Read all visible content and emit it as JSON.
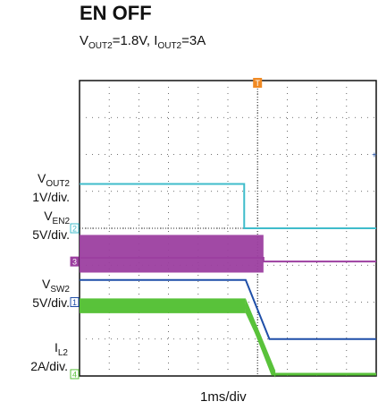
{
  "title": "EN OFF",
  "subtitle": {
    "v_main": "V",
    "v_sub": "OUT2",
    "v_val": "=1.8V, ",
    "i_main": "I",
    "i_sub": "OUT2",
    "i_val": "=3A"
  },
  "timebase": "1ms/div",
  "trigger_marker": "T",
  "channels": [
    {
      "id": "1",
      "name_main": "V",
      "name_sub": "OUT2",
      "scale": "1V/div.",
      "color": "#1f4fa8"
    },
    {
      "id": "2",
      "name_main": "V",
      "name_sub": "EN2",
      "scale": "5V/div.",
      "color": "#3fbccb"
    },
    {
      "id": "3",
      "name_main": "V",
      "name_sub": "SW2",
      "scale": "5V/div.",
      "color": "#9c3fa0"
    },
    {
      "id": "4",
      "name_main": "I",
      "name_sub": "L2",
      "scale": "2A/div.",
      "color": "#59c23a"
    }
  ],
  "chart_data": {
    "type": "line",
    "title": "EN OFF",
    "xlabel": "1ms/div",
    "x_divisions": 10,
    "y_divisions": 8,
    "grid": true,
    "trigger_time_div": 6.0,
    "series": [
      {
        "name": "VOUT2",
        "points": [
          [
            0,
            2.6
          ],
          [
            5.6,
            2.6
          ],
          [
            6.4,
            1.0
          ],
          [
            10,
            1.0
          ]
        ]
      },
      {
        "name": "VEN2",
        "points": [
          [
            0,
            5.2
          ],
          [
            5.55,
            5.2
          ],
          [
            5.55,
            4.0
          ],
          [
            10,
            4.0
          ]
        ]
      },
      {
        "name": "VSW2",
        "points": [
          [
            0,
            3.2
          ],
          [
            6.2,
            3.2
          ],
          [
            6.2,
            3.1
          ],
          [
            10,
            3.1
          ]
        ]
      },
      {
        "name": "IL2",
        "points": [
          [
            0,
            1.9
          ],
          [
            5.6,
            1.9
          ],
          [
            6.5,
            0.05
          ],
          [
            10,
            0.05
          ]
        ]
      }
    ]
  }
}
